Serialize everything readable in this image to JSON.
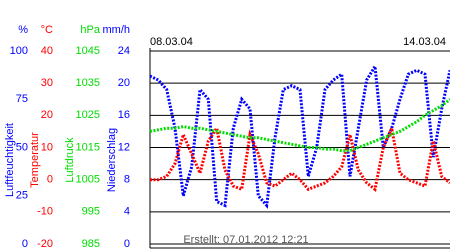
{
  "chart_data": {
    "type": "line",
    "start_date": "08.03.04",
    "end_date": "14.03.04",
    "footer": "Erstellt: 07.01.2012 12:21",
    "grid": true,
    "axes": [
      {
        "unit": "%",
        "label": "Luftfeuchtigkeit",
        "color": "#0000ff",
        "lim": [
          0,
          100
        ],
        "ticks": [
          0,
          25,
          50,
          75,
          100
        ]
      },
      {
        "unit": "°C",
        "label": "Temperatur",
        "color": "#ff0000",
        "lim": [
          -20,
          40
        ],
        "ticks": [
          -20,
          -10,
          0,
          10,
          20,
          30,
          40
        ]
      },
      {
        "unit": "hPa",
        "label": "Luftdruck",
        "color": "#00dd00",
        "lim": [
          985,
          1045
        ],
        "ticks": [
          985,
          995,
          1005,
          1015,
          1025,
          1035,
          1045
        ]
      },
      {
        "unit": "mm/h",
        "label": "Niederschlag",
        "color": "#0000ff",
        "lim": [
          0,
          24
        ],
        "ticks": [
          0,
          4,
          8,
          12,
          16,
          20,
          24
        ]
      }
    ],
    "series": [
      {
        "axis": 0,
        "color": "#0000ff",
        "values": [
          87,
          85,
          80,
          60,
          25,
          40,
          80,
          75,
          22,
          20,
          60,
          75,
          70,
          25,
          20,
          55,
          80,
          82,
          80,
          35,
          50,
          80,
          85,
          88,
          35,
          60,
          85,
          92,
          50,
          60,
          75,
          88,
          90,
          88,
          45,
          70,
          90
        ]
      },
      {
        "axis": 1,
        "color": "#ff0000",
        "values": [
          0,
          0,
          1,
          5,
          14,
          8,
          2,
          12,
          16,
          3,
          -2,
          -3,
          14,
          8,
          -1,
          -2,
          0,
          2,
          0,
          -3,
          -2,
          -1,
          1,
          4,
          14,
          3,
          -1,
          -3,
          10,
          16,
          2,
          0,
          -1,
          -2,
          12,
          1,
          -1
        ]
      },
      {
        "axis": 2,
        "color": "#00dd00",
        "values": [
          1020,
          1020.5,
          1021,
          1021,
          1021.5,
          1021,
          1021,
          1020.5,
          1020,
          1019.5,
          1019,
          1018.5,
          1018,
          1018,
          1017.5,
          1017,
          1016.5,
          1016,
          1015.5,
          1015,
          1015,
          1014.5,
          1014.5,
          1014,
          1014,
          1015,
          1016,
          1017,
          1018,
          1019,
          1020,
          1021.5,
          1023,
          1025,
          1026.5,
          1028,
          1030
        ]
      }
    ]
  }
}
